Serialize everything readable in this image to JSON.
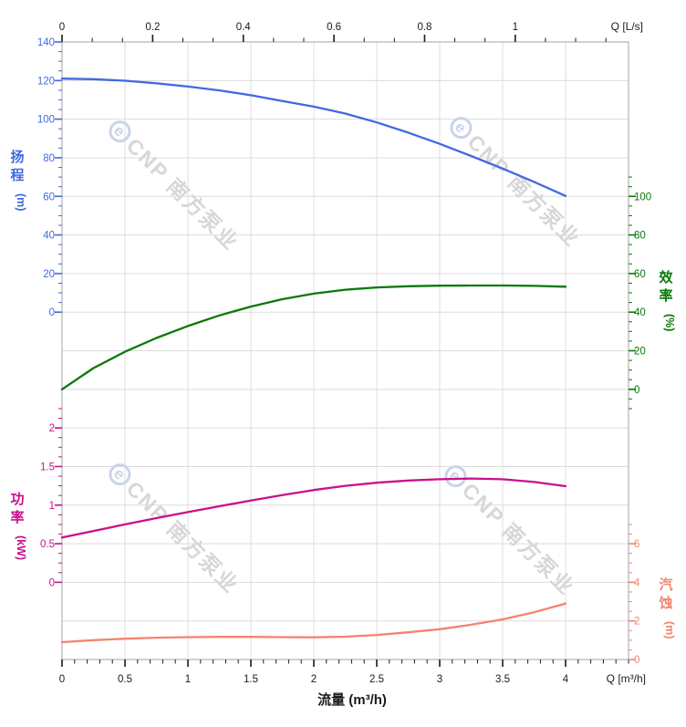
{
  "chart_data": {
    "type": "line",
    "title": "",
    "x_label_bottom": "流量 (m³/h)",
    "x_unit_bottom": "Q [m³/h]",
    "x_unit_top": "Q [L/s]",
    "x": [
      0,
      0.25,
      0.5,
      0.75,
      1,
      1.25,
      1.5,
      1.75,
      2,
      2.25,
      2.5,
      2.75,
      3,
      3.25,
      3.5,
      3.75,
      4
    ],
    "series": [
      {
        "name": "扬程",
        "unit": "m",
        "axis": "head",
        "color": "#4169e1",
        "values": [
          121,
          120.7,
          119.9,
          118.6,
          116.9,
          114.9,
          112.4,
          109.4,
          106.5,
          102.9,
          98.3,
          93.0,
          87.2,
          80.9,
          74.4,
          67.5,
          60.2
        ]
      },
      {
        "name": "效率",
        "unit": "%",
        "axis": "efficiency",
        "color": "#097909",
        "values": [
          0,
          11,
          19.5,
          26.6,
          32.8,
          38.3,
          42.9,
          46.7,
          49.6,
          51.6,
          52.8,
          53.4,
          53.7,
          53.8,
          53.8,
          53.6,
          53.2
        ]
      },
      {
        "name": "功率",
        "unit": "kW",
        "axis": "power",
        "color": "#cb0f8c",
        "values": [
          0.58,
          0.665,
          0.75,
          0.832,
          0.91,
          0.985,
          1.06,
          1.13,
          1.195,
          1.25,
          1.29,
          1.318,
          1.335,
          1.345,
          1.335,
          1.3,
          1.245
        ]
      },
      {
        "name": "汽蚀",
        "unit": "m",
        "axis": "npsh",
        "color": "#f4836e",
        "values": [
          0.9,
          1.0,
          1.08,
          1.13,
          1.16,
          1.17,
          1.17,
          1.16,
          1.15,
          1.18,
          1.27,
          1.41,
          1.57,
          1.8,
          2.08,
          2.45,
          2.9
        ]
      }
    ],
    "axes": {
      "top": {
        "label": "Q [L/s]",
        "ticks": [
          0,
          0.2,
          0.4,
          0.6,
          0.8,
          1
        ],
        "range": [
          0,
          1.25
        ]
      },
      "bottom": {
        "label": "Q [m³/h]",
        "title": "流量 (m³/h)",
        "ticks": [
          0,
          0.5,
          1,
          1.5,
          2,
          2.5,
          3,
          3.5,
          4
        ],
        "range": [
          0,
          4.5
        ],
        "minor_step": 0.1
      },
      "head": {
        "title": "扬程",
        "unit": "(m)",
        "color": "#4169e1",
        "ticks": [
          140,
          120,
          100,
          80,
          60,
          40,
          20,
          0
        ],
        "minor_step": 5
      },
      "efficiency": {
        "title": "效率",
        "unit": "(%)",
        "color": "#097909",
        "ticks": [
          100,
          80,
          60,
          40,
          20,
          0
        ],
        "minor_step": 5
      },
      "power": {
        "title": "功率",
        "unit": "(kW)",
        "color": "#cb0f8c",
        "ticks": [
          2,
          1.5,
          1,
          0.5,
          0
        ],
        "minor_step": 0.125
      },
      "npsh": {
        "title": "汽蚀",
        "unit": "(m)",
        "color": "#f4836e",
        "ticks": [
          6,
          4,
          2,
          0
        ],
        "minor_step": 0.5
      }
    },
    "grid": true,
    "legend": "none",
    "colors": {
      "grid": "#dcdcdc",
      "border": "#a3a3a3",
      "tick_black": "#1a1a1a",
      "watermark_text": "#d7d7d7",
      "watermark_logo": "#c9d4ea"
    },
    "watermark": {
      "logo_glyph": "e",
      "text": "CNP 南方泵业"
    }
  }
}
